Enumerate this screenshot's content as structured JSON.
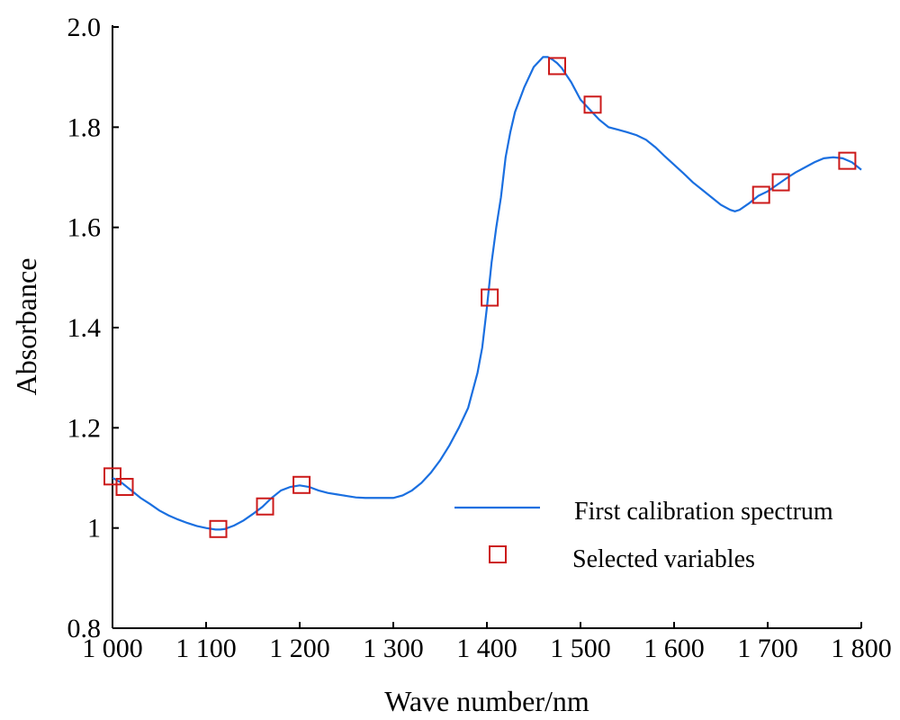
{
  "chart_data": {
    "type": "line",
    "xlabel": "Wave number/nm",
    "ylabel": "Absorbance",
    "xlim": [
      1000,
      1800
    ],
    "ylim": [
      0.8,
      2.0
    ],
    "x_ticks": [
      1000,
      1100,
      1200,
      1300,
      1400,
      1500,
      1600,
      1700,
      1800
    ],
    "x_tick_labels": [
      "1 000",
      "1 100",
      "1 200",
      "1 300",
      "1 400",
      "1 500",
      "1 600",
      "1 700",
      "1 800"
    ],
    "y_ticks": [
      0.8,
      1.0,
      1.2,
      1.4,
      1.6,
      1.8,
      2.0
    ],
    "y_tick_labels": [
      "0.8",
      "1",
      "1.2",
      "1.4",
      "1.6",
      "1.8",
      "2.0"
    ],
    "grid": false,
    "legend_position": "lower-right",
    "colors": {
      "line": "#1a6fe0",
      "markers": "#cc1a1a",
      "axes": "#000000"
    },
    "series": [
      {
        "name": "First calibration spectrum",
        "style": "line",
        "x": [
          1000,
          1010,
          1020,
          1030,
          1040,
          1050,
          1060,
          1070,
          1080,
          1090,
          1100,
          1110,
          1115,
          1120,
          1130,
          1140,
          1150,
          1160,
          1170,
          1180,
          1190,
          1200,
          1210,
          1220,
          1230,
          1240,
          1250,
          1260,
          1270,
          1280,
          1290,
          1300,
          1310,
          1320,
          1330,
          1340,
          1350,
          1360,
          1370,
          1380,
          1390,
          1395,
          1400,
          1405,
          1410,
          1415,
          1420,
          1425,
          1430,
          1440,
          1450,
          1460,
          1465,
          1470,
          1475,
          1480,
          1490,
          1500,
          1510,
          1520,
          1530,
          1540,
          1550,
          1560,
          1570,
          1580,
          1590,
          1600,
          1610,
          1620,
          1630,
          1640,
          1650,
          1660,
          1665,
          1670,
          1680,
          1690,
          1700,
          1710,
          1720,
          1730,
          1740,
          1750,
          1760,
          1770,
          1780,
          1790,
          1800
        ],
        "y": [
          1.1,
          1.09,
          1.075,
          1.06,
          1.048,
          1.035,
          1.025,
          1.017,
          1.01,
          1.004,
          1.0,
          0.997,
          0.997,
          0.998,
          1.005,
          1.015,
          1.028,
          1.042,
          1.06,
          1.075,
          1.082,
          1.085,
          1.082,
          1.075,
          1.07,
          1.067,
          1.064,
          1.061,
          1.06,
          1.06,
          1.06,
          1.06,
          1.065,
          1.075,
          1.09,
          1.11,
          1.135,
          1.165,
          1.2,
          1.24,
          1.31,
          1.36,
          1.44,
          1.53,
          1.6,
          1.66,
          1.74,
          1.79,
          1.83,
          1.88,
          1.92,
          1.94,
          1.94,
          1.935,
          1.928,
          1.918,
          1.89,
          1.855,
          1.835,
          1.815,
          1.8,
          1.795,
          1.79,
          1.784,
          1.775,
          1.76,
          1.742,
          1.725,
          1.708,
          1.69,
          1.675,
          1.66,
          1.645,
          1.635,
          1.632,
          1.635,
          1.648,
          1.663,
          1.672,
          1.685,
          1.698,
          1.71,
          1.72,
          1.73,
          1.738,
          1.74,
          1.738,
          1.73,
          1.715
        ]
      },
      {
        "name": "Selected variables",
        "style": "marker",
        "x": [
          1000,
          1013,
          1113,
          1163,
          1202,
          1403,
          1475,
          1513,
          1693,
          1714,
          1785
        ],
        "y": [
          1.103,
          1.082,
          0.998,
          1.043,
          1.086,
          1.46,
          1.922,
          1.845,
          1.665,
          1.69,
          1.733
        ]
      }
    ]
  }
}
